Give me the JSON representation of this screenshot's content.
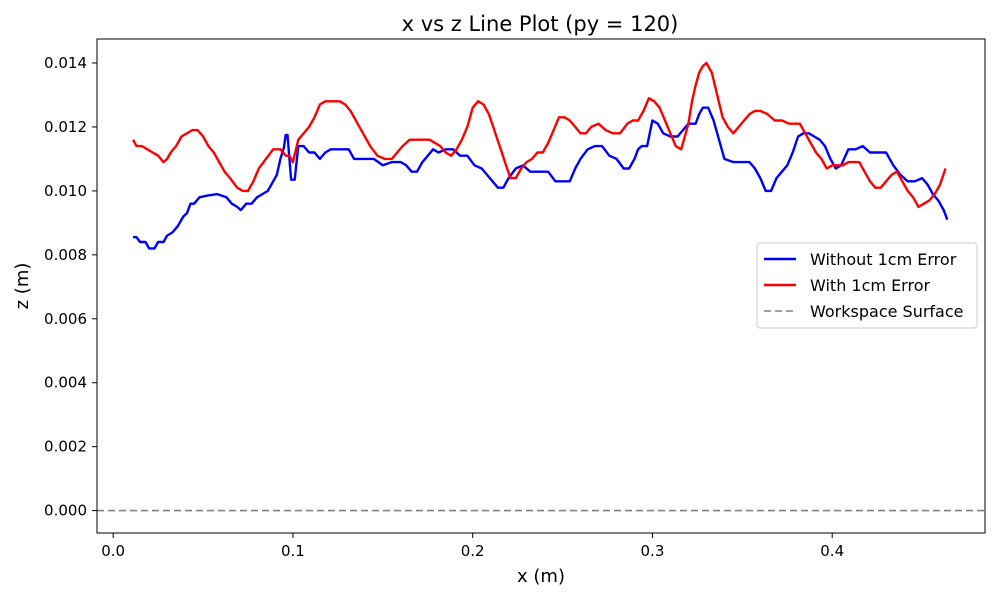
{
  "chart_data": {
    "type": "line",
    "title": "x vs z Line Plot (py = 120)",
    "xlabel": "x (m)",
    "ylabel": "z (m)",
    "xlim": [
      -0.009,
      0.485
    ],
    "ylim": [
      -0.0007,
      0.01475
    ],
    "xticks": [
      0.0,
      0.1,
      0.2,
      0.3,
      0.4
    ],
    "xtick_labels": [
      "0.0",
      "0.1",
      "0.2",
      "0.3",
      "0.4"
    ],
    "yticks": [
      0.0,
      0.002,
      0.004,
      0.006,
      0.008,
      0.01,
      0.012,
      0.014
    ],
    "ytick_labels": [
      "0.000",
      "0.002",
      "0.004",
      "0.006",
      "0.008",
      "0.010",
      "0.012",
      "0.014"
    ],
    "grid": false,
    "legend_position": "center-right",
    "series": [
      {
        "name": "Without 1cm Error",
        "color": "#0000ff",
        "style": "solid",
        "x": [
          0.011,
          0.013,
          0.015,
          0.018,
          0.02,
          0.023,
          0.025,
          0.028,
          0.03,
          0.033,
          0.036,
          0.039,
          0.041,
          0.043,
          0.045,
          0.048,
          0.052,
          0.058,
          0.063,
          0.066,
          0.069,
          0.071,
          0.074,
          0.077,
          0.08,
          0.083,
          0.086,
          0.089,
          0.091,
          0.093,
          0.095,
          0.096,
          0.097,
          0.099,
          0.101,
          0.103,
          0.106,
          0.109,
          0.112,
          0.115,
          0.118,
          0.121,
          0.126,
          0.131,
          0.134,
          0.137,
          0.14,
          0.145,
          0.15,
          0.155,
          0.16,
          0.163,
          0.166,
          0.169,
          0.172,
          0.175,
          0.178,
          0.181,
          0.185,
          0.189,
          0.193,
          0.197,
          0.201,
          0.205,
          0.208,
          0.211,
          0.214,
          0.217,
          0.22,
          0.224,
          0.228,
          0.232,
          0.237,
          0.242,
          0.246,
          0.25,
          0.254,
          0.257,
          0.26,
          0.264,
          0.268,
          0.272,
          0.276,
          0.28,
          0.284,
          0.287,
          0.29,
          0.292,
          0.294,
          0.297,
          0.3,
          0.303,
          0.306,
          0.31,
          0.314,
          0.317,
          0.32,
          0.322,
          0.324,
          0.326,
          0.328,
          0.331,
          0.334,
          0.337,
          0.34,
          0.345,
          0.35,
          0.354,
          0.357,
          0.36,
          0.363,
          0.366,
          0.369,
          0.372,
          0.375,
          0.378,
          0.381,
          0.384,
          0.387,
          0.39,
          0.393,
          0.396,
          0.399,
          0.402,
          0.405,
          0.409,
          0.413,
          0.417,
          0.421,
          0.424,
          0.427,
          0.43,
          0.434,
          0.438,
          0.442,
          0.446,
          0.45,
          0.453,
          0.456,
          0.459,
          0.462,
          0.464
        ],
        "y": [
          0.00855,
          0.00855,
          0.0084,
          0.0084,
          0.0082,
          0.0082,
          0.0084,
          0.0084,
          0.0086,
          0.0087,
          0.0089,
          0.0092,
          0.0093,
          0.0096,
          0.0096,
          0.0098,
          0.00985,
          0.0099,
          0.0098,
          0.0096,
          0.0095,
          0.0094,
          0.0096,
          0.0096,
          0.0098,
          0.0099,
          0.01,
          0.0103,
          0.0105,
          0.011,
          0.01135,
          0.01175,
          0.01175,
          0.01035,
          0.01035,
          0.0114,
          0.0114,
          0.0112,
          0.0112,
          0.011,
          0.0112,
          0.0113,
          0.0113,
          0.0113,
          0.011,
          0.011,
          0.011,
          0.011,
          0.0108,
          0.0109,
          0.0109,
          0.0108,
          0.0106,
          0.0106,
          0.0109,
          0.0111,
          0.0113,
          0.0112,
          0.0113,
          0.0113,
          0.0111,
          0.0111,
          0.0108,
          0.0107,
          0.0105,
          0.0103,
          0.0101,
          0.0101,
          0.0104,
          0.0107,
          0.0108,
          0.0106,
          0.0106,
          0.0106,
          0.0103,
          0.0103,
          0.0103,
          0.0107,
          0.011,
          0.0113,
          0.0114,
          0.0114,
          0.0111,
          0.011,
          0.0107,
          0.0107,
          0.011,
          0.0113,
          0.0114,
          0.0114,
          0.0122,
          0.0121,
          0.0118,
          0.0117,
          0.0117,
          0.0119,
          0.0121,
          0.0121,
          0.0121,
          0.0124,
          0.0126,
          0.0126,
          0.0122,
          0.0116,
          0.011,
          0.0109,
          0.0109,
          0.0109,
          0.0107,
          0.0104,
          0.01,
          0.01,
          0.0104,
          0.0106,
          0.0108,
          0.0112,
          0.0117,
          0.0118,
          0.0118,
          0.0117,
          0.0116,
          0.0114,
          0.011,
          0.0107,
          0.0108,
          0.0113,
          0.0113,
          0.0114,
          0.0112,
          0.0112,
          0.0112,
          0.0112,
          0.0108,
          0.0105,
          0.0103,
          0.0103,
          0.0104,
          0.0102,
          0.0099,
          0.0097,
          0.0094,
          0.0091
        ]
      },
      {
        "name": "With 1cm Error",
        "color": "#ff0000",
        "style": "solid",
        "x": [
          0.011,
          0.013,
          0.016,
          0.019,
          0.022,
          0.025,
          0.028,
          0.03,
          0.032,
          0.035,
          0.038,
          0.041,
          0.044,
          0.047,
          0.05,
          0.053,
          0.056,
          0.059,
          0.062,
          0.065,
          0.069,
          0.072,
          0.075,
          0.078,
          0.081,
          0.085,
          0.089,
          0.093,
          0.096,
          0.098,
          0.1,
          0.103,
          0.106,
          0.109,
          0.112,
          0.115,
          0.118,
          0.122,
          0.126,
          0.129,
          0.132,
          0.135,
          0.139,
          0.143,
          0.147,
          0.151,
          0.155,
          0.158,
          0.161,
          0.165,
          0.169,
          0.173,
          0.176,
          0.179,
          0.182,
          0.185,
          0.188,
          0.191,
          0.194,
          0.197,
          0.2,
          0.203,
          0.206,
          0.209,
          0.212,
          0.215,
          0.218,
          0.221,
          0.224,
          0.227,
          0.23,
          0.233,
          0.236,
          0.239,
          0.242,
          0.245,
          0.248,
          0.251,
          0.254,
          0.257,
          0.26,
          0.263,
          0.266,
          0.27,
          0.274,
          0.278,
          0.282,
          0.286,
          0.289,
          0.292,
          0.295,
          0.298,
          0.301,
          0.304,
          0.307,
          0.31,
          0.313,
          0.316,
          0.318,
          0.32,
          0.322,
          0.324,
          0.326,
          0.328,
          0.33,
          0.333,
          0.336,
          0.339,
          0.342,
          0.345,
          0.348,
          0.351,
          0.354,
          0.357,
          0.36,
          0.364,
          0.368,
          0.372,
          0.376,
          0.379,
          0.382,
          0.385,
          0.388,
          0.391,
          0.394,
          0.397,
          0.4,
          0.403,
          0.406,
          0.409,
          0.412,
          0.415,
          0.418,
          0.421,
          0.424,
          0.427,
          0.43,
          0.433,
          0.436,
          0.439,
          0.442,
          0.445,
          0.448,
          0.451,
          0.454,
          0.457,
          0.46,
          0.463
        ],
        "y": [
          0.0116,
          0.0114,
          0.0114,
          0.0113,
          0.0112,
          0.0111,
          0.0109,
          0.011,
          0.0112,
          0.0114,
          0.0117,
          0.0118,
          0.0119,
          0.0119,
          0.0117,
          0.0114,
          0.0112,
          0.0109,
          0.0106,
          0.0104,
          0.0101,
          0.01,
          0.01,
          0.0103,
          0.0107,
          0.011,
          0.0113,
          0.0113,
          0.0111,
          0.0111,
          0.0109,
          0.0116,
          0.0118,
          0.012,
          0.0123,
          0.0127,
          0.0128,
          0.0128,
          0.0128,
          0.0127,
          0.0125,
          0.0122,
          0.0118,
          0.0114,
          0.0111,
          0.011,
          0.011,
          0.0112,
          0.0114,
          0.0116,
          0.0116,
          0.0116,
          0.0116,
          0.0115,
          0.0114,
          0.0112,
          0.0111,
          0.0113,
          0.0116,
          0.012,
          0.0126,
          0.0128,
          0.0127,
          0.0124,
          0.0119,
          0.0114,
          0.0109,
          0.0104,
          0.0104,
          0.0107,
          0.0109,
          0.011,
          0.0112,
          0.0112,
          0.0115,
          0.0119,
          0.0123,
          0.0123,
          0.0122,
          0.012,
          0.0118,
          0.0118,
          0.012,
          0.0121,
          0.0119,
          0.0118,
          0.0118,
          0.0121,
          0.0122,
          0.0122,
          0.0125,
          0.0129,
          0.0128,
          0.0126,
          0.0122,
          0.0118,
          0.0114,
          0.0113,
          0.0117,
          0.0121,
          0.0128,
          0.0133,
          0.0137,
          0.0139,
          0.014,
          0.0137,
          0.013,
          0.0123,
          0.012,
          0.0118,
          0.012,
          0.0122,
          0.0124,
          0.0125,
          0.0125,
          0.0124,
          0.0122,
          0.0122,
          0.0121,
          0.0121,
          0.0121,
          0.0118,
          0.0115,
          0.0112,
          0.011,
          0.0107,
          0.0108,
          0.0108,
          0.0108,
          0.0109,
          0.0109,
          0.0109,
          0.0106,
          0.0103,
          0.0101,
          0.0101,
          0.0103,
          0.0105,
          0.0106,
          0.0103,
          0.01,
          0.0098,
          0.0095,
          0.0096,
          0.0097,
          0.0099,
          0.0102,
          0.0107
        ]
      },
      {
        "name": "Workspace Surface",
        "color": "#808080",
        "style": "dashed",
        "x": [
          -0.009,
          0.485
        ],
        "y": [
          0.0,
          0.0
        ]
      }
    ]
  }
}
